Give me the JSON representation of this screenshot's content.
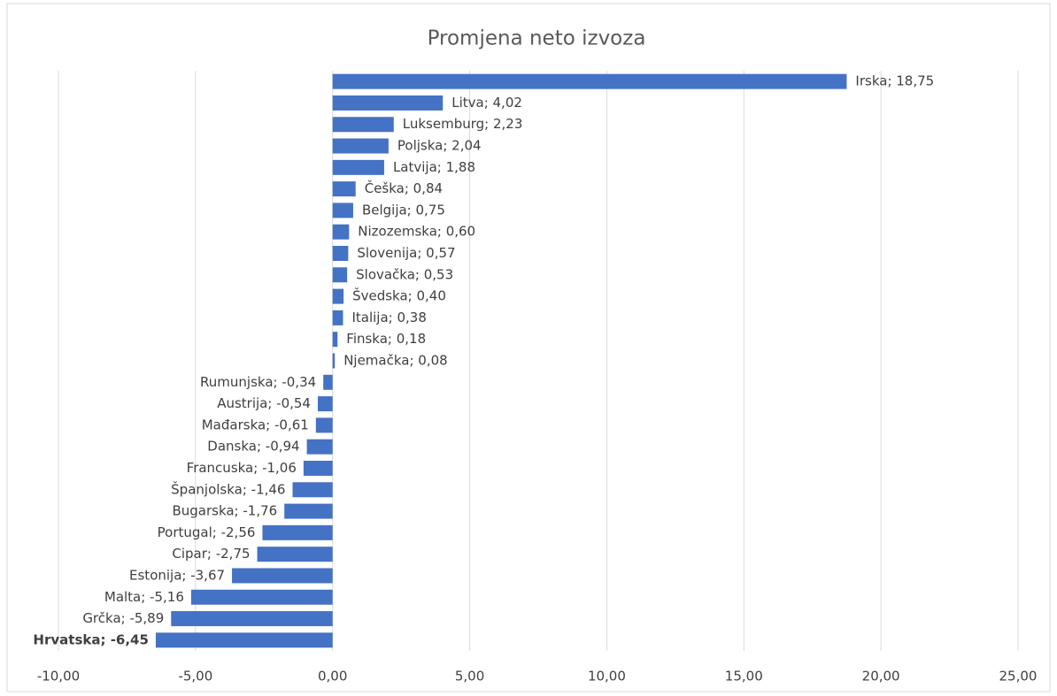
{
  "chart_data": {
    "type": "hbar",
    "title": "Promjena neto izvoza",
    "values": [
      18.75,
      4.02,
      2.23,
      2.04,
      1.88,
      0.84,
      0.75,
      0.6,
      0.57,
      0.53,
      0.4,
      0.38,
      0.18,
      0.08,
      -0.34,
      -0.54,
      -0.61,
      -0.94,
      -1.06,
      -1.46,
      -1.76,
      -2.56,
      -2.75,
      -3.67,
      -5.16,
      -5.89,
      -6.45
    ],
    "value_labels": [
      "Irska; 18,75",
      "Litva; 4,02",
      "Luksemburg; 2,23",
      "Poljska; 2,04",
      "Latvija; 1,88",
      "Češka; 0,84",
      "Belgija; 0,75",
      "Nizozemska; 0,60",
      "Slovenija; 0,57",
      "Slovačka; 0,53",
      "Švedska; 0,40",
      "Italija; 0,38",
      "Finska; 0,18",
      "Njemačka; 0,08",
      "Rumunjska; -0,34",
      "Austrija; -0,54",
      "Mađarska; -0,61",
      "Danska; -0,94",
      "Francuska; -1,06",
      "Španjolska; -1,46",
      "Bugarska; -1,76",
      "Portugal; -2,56",
      "Cipar; -2,75",
      "Estonija; -3,67",
      "Malta; -5,16",
      "Grčka; -5,89",
      "Hrvatska; -6,45"
    ],
    "highlight_index": 26,
    "color": "#4472c4",
    "xlim": [
      -10,
      25
    ],
    "xticks": [
      {
        "value": -10,
        "label": "-10,00"
      },
      {
        "value": -5,
        "label": "-5,00"
      },
      {
        "value": 0,
        "label": "0,00"
      },
      {
        "value": 5,
        "label": "5,00"
      },
      {
        "value": 10,
        "label": "10,00"
      },
      {
        "value": 15,
        "label": "15,00"
      },
      {
        "value": 20,
        "label": "20,00"
      },
      {
        "value": 25,
        "label": "25,00"
      }
    ],
    "grid": true
  }
}
